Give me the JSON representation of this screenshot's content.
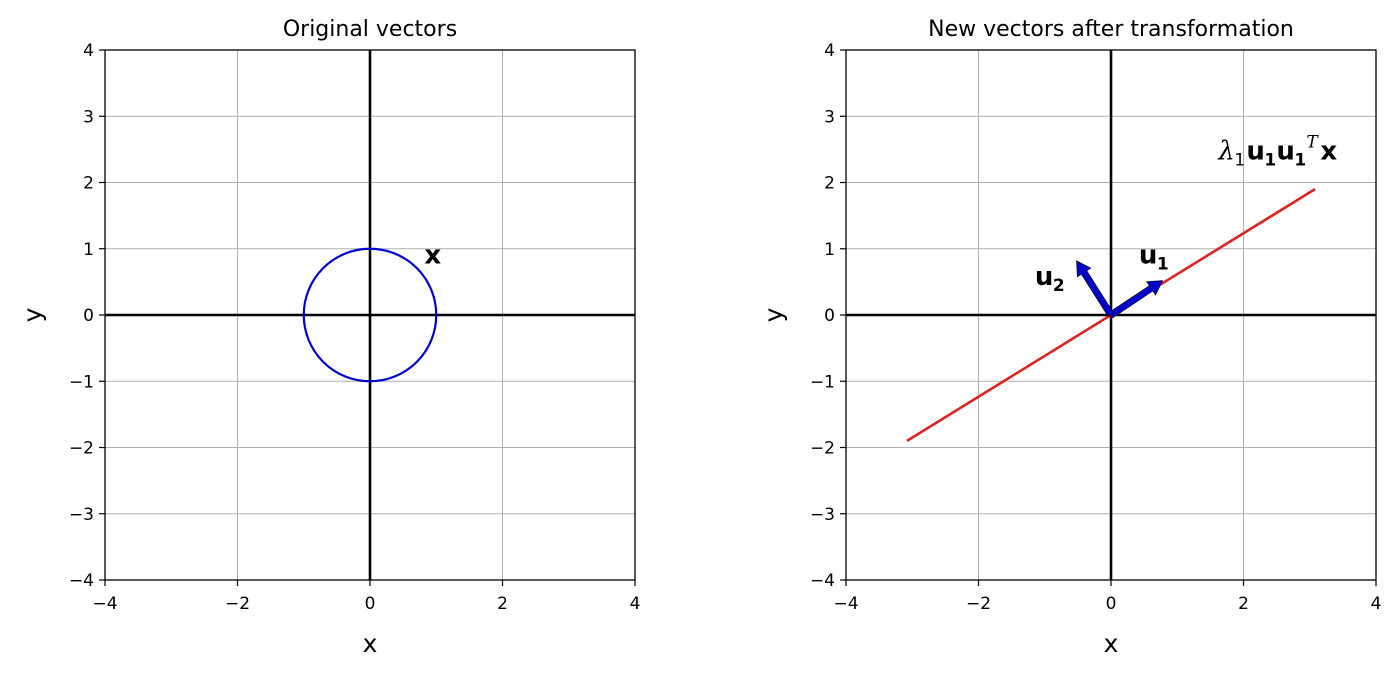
{
  "chart_data": [
    {
      "type": "line",
      "title": "Original vectors",
      "xlabel": "x",
      "ylabel": "y",
      "xlim": [
        -4,
        4
      ],
      "ylim": [
        -4,
        4
      ],
      "xticks": [
        -4,
        -2,
        0,
        2,
        4
      ],
      "yticks": [
        -4,
        -3,
        -2,
        -1,
        0,
        1,
        2,
        3,
        4
      ],
      "grid": true,
      "axis_lines": true,
      "series": [
        {
          "kind": "circle",
          "center": [
            0,
            0
          ],
          "radius": 1,
          "color": "#0000cc"
        }
      ],
      "annotations": [
        {
          "text": "x",
          "at": [
            0.82,
            0.78
          ]
        }
      ]
    },
    {
      "type": "line",
      "title": "New vectors after transformation",
      "xlabel": "x",
      "ylabel": "y",
      "xlim": [
        -4,
        4
      ],
      "ylim": [
        -4,
        4
      ],
      "xticks": [
        -4,
        -2,
        0,
        2,
        4
      ],
      "yticks": [
        -4,
        -3,
        -2,
        -1,
        0,
        1,
        2,
        3,
        4
      ],
      "grid": true,
      "axis_lines": true,
      "series": [
        {
          "kind": "segment",
          "from": [
            -3.08,
            -1.9
          ],
          "to": [
            3.08,
            1.9
          ],
          "color": "#dd2222"
        }
      ],
      "vectors": [
        {
          "name": "u1",
          "from": [
            0,
            0
          ],
          "to": [
            0.78,
            0.52
          ],
          "color": "#0000cc"
        },
        {
          "name": "u2",
          "from": [
            0,
            0
          ],
          "to": [
            -0.52,
            0.82
          ],
          "color": "#0000cc"
        }
      ],
      "annotations": [
        {
          "text": "u1",
          "at": [
            0.42,
            0.78
          ]
        },
        {
          "text": "u2",
          "at": [
            -1.15,
            0.45
          ]
        },
        {
          "text": "λ1u1u1ᵀx",
          "at": [
            1.62,
            2.35
          ]
        }
      ]
    }
  ],
  "colors": {
    "grid": "#b0b0b0",
    "axis_line": "#000000",
    "circle": "#0000cc",
    "transformed_line": "#dd2222",
    "vector": "#0000cc"
  }
}
